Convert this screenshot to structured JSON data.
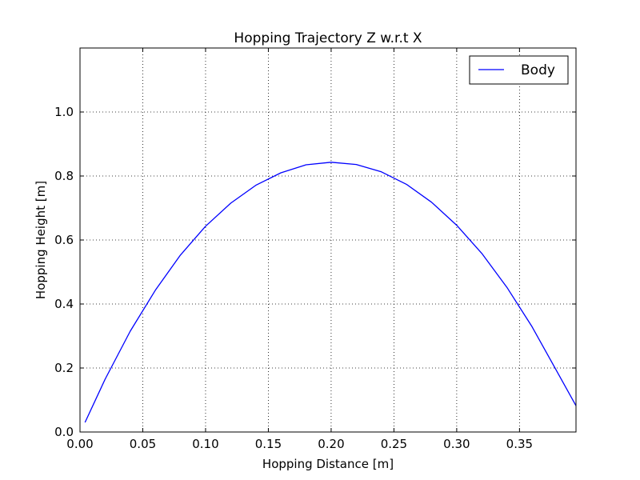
{
  "chart_data": {
    "type": "line",
    "title": "Hopping Trajectory Z w.r.t X",
    "xlabel": "Hopping Distance [m]",
    "ylabel": "Hopping Height [m]",
    "xlim": [
      0.0,
      0.395
    ],
    "ylim": [
      0.0,
      1.2
    ],
    "xticks": [
      0.0,
      0.05,
      0.1,
      0.15,
      0.2,
      0.25,
      0.3,
      0.35
    ],
    "xtick_labels": [
      "0.00",
      "0.05",
      "0.10",
      "0.15",
      "0.20",
      "0.25",
      "0.30",
      "0.35"
    ],
    "yticks": [
      0.0,
      0.2,
      0.4,
      0.6,
      0.8,
      1.0
    ],
    "ytick_labels": [
      "0.0",
      "0.2",
      "0.4",
      "0.6",
      "0.8",
      "1.0"
    ],
    "grid": true,
    "grid_style": "dotted",
    "legend": {
      "placement": "top-right",
      "entries": [
        "Body"
      ]
    },
    "series": [
      {
        "name": "Body",
        "color": "#0000ff",
        "x": [
          0.004,
          0.02,
          0.04,
          0.06,
          0.08,
          0.1,
          0.12,
          0.14,
          0.16,
          0.18,
          0.2,
          0.22,
          0.24,
          0.26,
          0.28,
          0.3,
          0.32,
          0.34,
          0.36,
          0.38,
          0.395
        ],
        "y": [
          0.03,
          0.165,
          0.315,
          0.443,
          0.553,
          0.643,
          0.715,
          0.771,
          0.81,
          0.835,
          0.843,
          0.836,
          0.813,
          0.774,
          0.718,
          0.646,
          0.558,
          0.452,
          0.329,
          0.188,
          0.082
        ]
      }
    ]
  }
}
